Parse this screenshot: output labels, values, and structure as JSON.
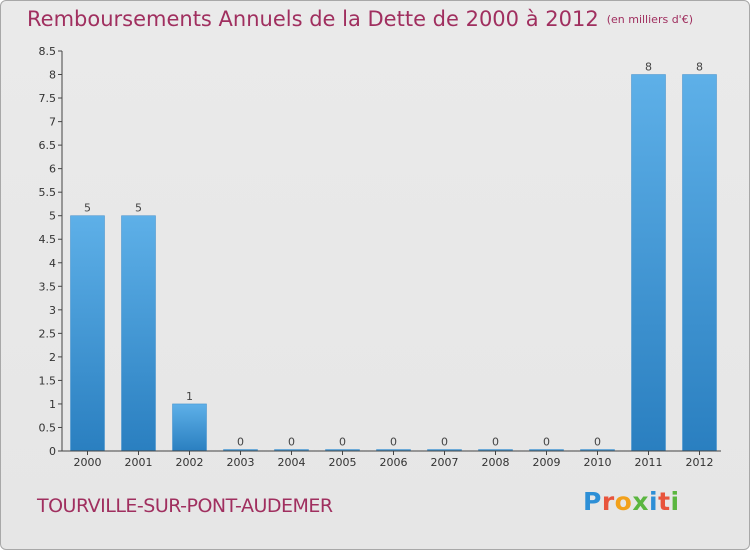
{
  "header": {
    "title": "Remboursements Annuels de la Dette de 2000 à 2012",
    "subtitle": "(en milliers d'€)"
  },
  "footer": {
    "place": "TOURVILLE-SUR-PONT-AUDEMER",
    "logo": [
      "P",
      "r",
      "o",
      "x",
      "i",
      "t",
      "i"
    ]
  },
  "chart_data": {
    "type": "bar",
    "title": "Remboursements Annuels de la Dette de 2000 à 2012",
    "subtitle": "(en milliers d'€)",
    "categories": [
      "2000",
      "2001",
      "2002",
      "2003",
      "2004",
      "2005",
      "2006",
      "2007",
      "2008",
      "2009",
      "2010",
      "2011",
      "2012"
    ],
    "values": [
      5,
      5,
      1,
      0,
      0,
      0,
      0,
      0,
      0,
      0,
      0,
      8,
      8
    ],
    "value_labels": [
      "5",
      "5",
      "1",
      "0",
      "0",
      "0",
      "0",
      "0",
      "0",
      "0",
      "0",
      "8",
      "8"
    ],
    "xlabel": "",
    "ylabel": "",
    "ylim": [
      0,
      8.5
    ],
    "yticks": [
      0,
      0.5,
      1,
      1.5,
      2,
      2.5,
      3,
      3.5,
      4,
      4.5,
      5,
      5.5,
      6,
      6.5,
      7,
      7.5,
      8,
      8.5
    ],
    "ytick_labels": [
      "0",
      "0.5",
      "1",
      "1.5",
      "2",
      "2.5",
      "3",
      "3.5",
      "4",
      "4.5",
      "5",
      "5.5",
      "6",
      "6.5",
      "7",
      "7.5",
      "8",
      "8.5"
    ],
    "grid": false,
    "bar_color_top": "#5eb0e8",
    "bar_color_bottom": "#2a7fc0"
  }
}
